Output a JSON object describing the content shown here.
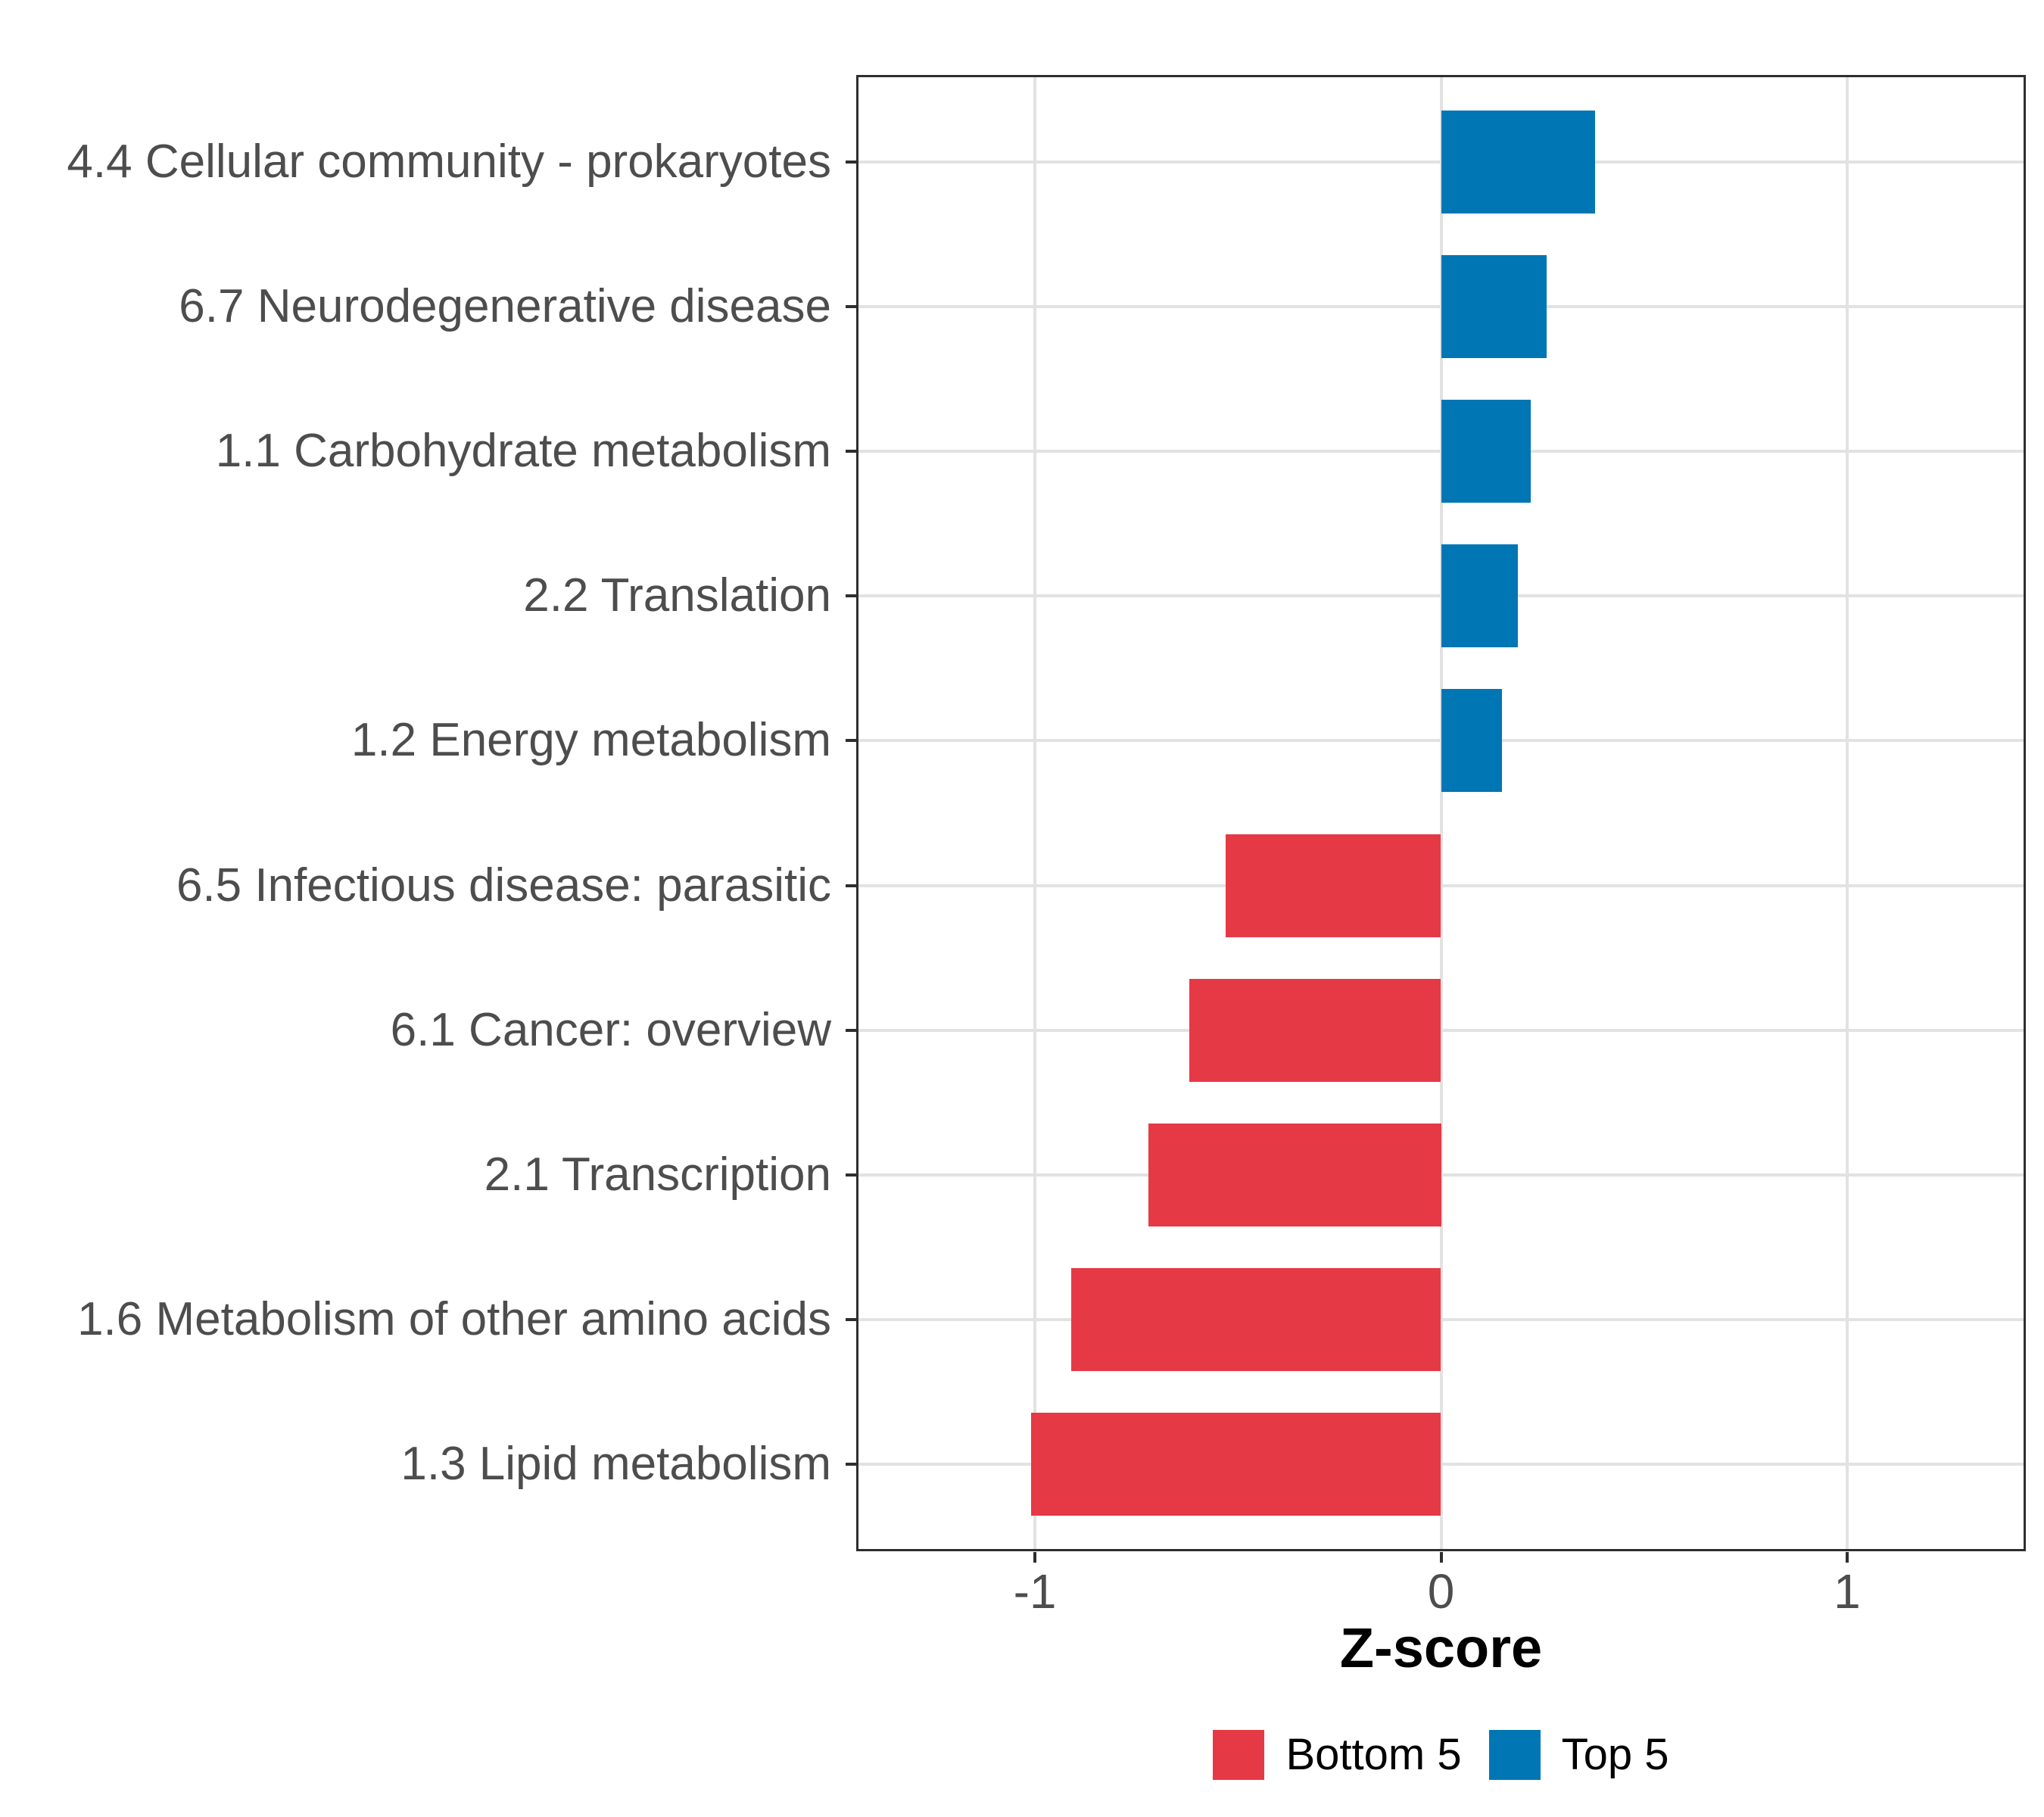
{
  "chart_data": {
    "type": "bar",
    "orientation": "horizontal",
    "title": "",
    "xlabel": "Z-score",
    "ylabel": "",
    "categories": [
      "4.4 Cellular community - prokaryotes",
      "6.7 Neurodegenerative disease",
      "1.1 Carbohydrate metabolism",
      "2.2 Translation",
      "1.2 Energy metabolism",
      "6.5 Infectious disease: parasitic",
      "6.1 Cancer: overview",
      "2.1 Transcription",
      "1.6 Metabolism of other amino acids",
      "1.3 Lipid metabolism"
    ],
    "values": [
      0.38,
      0.26,
      0.22,
      0.19,
      0.15,
      -0.53,
      -0.62,
      -0.72,
      -0.91,
      -1.01
    ],
    "groups": [
      "Top 5",
      "Top 5",
      "Top 5",
      "Top 5",
      "Top 5",
      "Bottom 5",
      "Bottom 5",
      "Bottom 5",
      "Bottom 5",
      "Bottom 5"
    ],
    "x_ticks": [
      -1,
      0,
      1
    ],
    "x_tick_labels": [
      "-1",
      "0",
      "1"
    ],
    "xlim": [
      -1.44,
      1.44
    ],
    "grid": true,
    "legend_position": "bottom",
    "legend": [
      {
        "label": "Bottom 5",
        "color": "#E63946"
      },
      {
        "label": "Top 5",
        "color": "#0076B4"
      }
    ],
    "colors": {
      "bottom5_red": "#E63946",
      "top5_blue": "#0076B4",
      "gridline": "#E2E2E2",
      "axis_text": "#4D4D4D",
      "panel_border": "#2E2E2E",
      "title_text": "#000000"
    }
  }
}
